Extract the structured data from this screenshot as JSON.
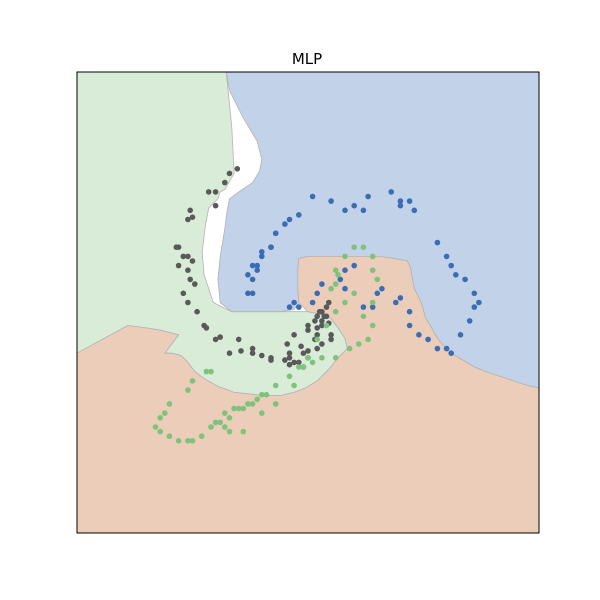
{
  "chart_data": {
    "type": "scatter",
    "title": "MLP",
    "xlabel": "",
    "ylabel": "",
    "xlim": [
      0,
      1
    ],
    "ylim": [
      0,
      1
    ],
    "axes_visible": false,
    "grid": false,
    "legend": "none",
    "colors": {
      "region_green": "#d8ecd8",
      "region_blue": "#c2d2e8",
      "region_orange": "#ebcdb9",
      "boundary": "#b3b3b3"
    },
    "decision_regions": [
      {
        "class": "green",
        "color": "#d8ecd8",
        "polygon": [
          [
            0,
            1
          ],
          [
            0.323,
            1
          ],
          [
            0.335,
            0.88
          ],
          [
            0.34,
            0.78
          ],
          [
            0.32,
            0.745
          ],
          [
            0.31,
            0.74
          ],
          [
            0.305,
            0.725
          ],
          [
            0.285,
            0.705
          ],
          [
            0.278,
            0.667
          ],
          [
            0.271,
            0.61
          ],
          [
            0.275,
            0.56
          ],
          [
            0.295,
            0.5
          ],
          [
            0.335,
            0.48
          ],
          [
            0.37,
            0.48
          ],
          [
            0.405,
            0.48
          ],
          [
            0.44,
            0.48
          ],
          [
            0.475,
            0.48
          ],
          [
            0.5,
            0.48
          ],
          [
            0.525,
            0.475
          ],
          [
            0.55,
            0.465
          ],
          [
            0.565,
            0.445
          ],
          [
            0.58,
            0.422
          ],
          [
            0.585,
            0.4
          ],
          [
            0.565,
            0.38
          ],
          [
            0.545,
            0.355
          ],
          [
            0.52,
            0.33
          ],
          [
            0.495,
            0.315
          ],
          [
            0.47,
            0.305
          ],
          [
            0.44,
            0.298
          ],
          [
            0.405,
            0.298
          ],
          [
            0.37,
            0.302
          ],
          [
            0.34,
            0.305
          ],
          [
            0.305,
            0.318
          ],
          [
            0.275,
            0.335
          ],
          [
            0.255,
            0.35
          ],
          [
            0.24,
            0.37
          ],
          [
            0.225,
            0.385
          ],
          [
            0.205,
            0.39
          ],
          [
            0.19,
            0.39
          ],
          [
            0.22,
            0.43
          ],
          [
            0.2,
            0.435
          ],
          [
            0.18,
            0.44
          ],
          [
            0.15,
            0.445
          ],
          [
            0.11,
            0.45
          ],
          [
            0,
            0.39
          ]
        ]
      },
      {
        "class": "blue",
        "color": "#c2d2e8",
        "polygon": [
          [
            0.323,
            1
          ],
          [
            1,
            1
          ],
          [
            1,
            0.315
          ],
          [
            0.975,
            0.32
          ],
          [
            0.945,
            0.33
          ],
          [
            0.915,
            0.34
          ],
          [
            0.885,
            0.35
          ],
          [
            0.86,
            0.36
          ],
          [
            0.835,
            0.375
          ],
          [
            0.81,
            0.39
          ],
          [
            0.79,
            0.41
          ],
          [
            0.775,
            0.43
          ],
          [
            0.765,
            0.45
          ],
          [
            0.755,
            0.465
          ],
          [
            0.745,
            0.5
          ],
          [
            0.73,
            0.53
          ],
          [
            0.725,
            0.555
          ],
          [
            0.722,
            0.575
          ],
          [
            0.715,
            0.59
          ],
          [
            0.69,
            0.595
          ],
          [
            0.655,
            0.6
          ],
          [
            0.61,
            0.6
          ],
          [
            0.57,
            0.6
          ],
          [
            0.535,
            0.6
          ],
          [
            0.5,
            0.6
          ],
          [
            0.48,
            0.595
          ],
          [
            0.478,
            0.57
          ],
          [
            0.478,
            0.53
          ],
          [
            0.48,
            0.5
          ],
          [
            0.47,
            0.485
          ],
          [
            0.44,
            0.48
          ],
          [
            0.405,
            0.48
          ],
          [
            0.37,
            0.48
          ],
          [
            0.335,
            0.48
          ],
          [
            0.31,
            0.5
          ],
          [
            0.305,
            0.55
          ],
          [
            0.31,
            0.6
          ],
          [
            0.32,
            0.66
          ],
          [
            0.325,
            0.7
          ],
          [
            0.33,
            0.725
          ],
          [
            0.35,
            0.74
          ],
          [
            0.38,
            0.76
          ],
          [
            0.395,
            0.785
          ],
          [
            0.4,
            0.81
          ],
          [
            0.39,
            0.85
          ],
          [
            0.36,
            0.9
          ],
          [
            0.345,
            0.93
          ],
          [
            0.33,
            0.96
          ]
        ]
      },
      {
        "class": "orange",
        "color": "#ebcdb9",
        "polygon": [
          [
            0,
            0
          ],
          [
            1,
            0
          ],
          [
            1,
            0.315
          ],
          [
            0.975,
            0.32
          ],
          [
            0.945,
            0.33
          ],
          [
            0.915,
            0.34
          ],
          [
            0.885,
            0.35
          ],
          [
            0.86,
            0.36
          ],
          [
            0.835,
            0.375
          ],
          [
            0.81,
            0.39
          ],
          [
            0.79,
            0.41
          ],
          [
            0.775,
            0.43
          ],
          [
            0.765,
            0.45
          ],
          [
            0.755,
            0.465
          ],
          [
            0.745,
            0.5
          ],
          [
            0.73,
            0.53
          ],
          [
            0.725,
            0.555
          ],
          [
            0.722,
            0.575
          ],
          [
            0.715,
            0.59
          ],
          [
            0.69,
            0.595
          ],
          [
            0.655,
            0.6
          ],
          [
            0.61,
            0.6
          ],
          [
            0.57,
            0.6
          ],
          [
            0.535,
            0.6
          ],
          [
            0.5,
            0.6
          ],
          [
            0.48,
            0.595
          ],
          [
            0.478,
            0.57
          ],
          [
            0.478,
            0.53
          ],
          [
            0.48,
            0.5
          ],
          [
            0.5,
            0.48
          ],
          [
            0.525,
            0.475
          ],
          [
            0.55,
            0.465
          ],
          [
            0.565,
            0.445
          ],
          [
            0.58,
            0.422
          ],
          [
            0.585,
            0.4
          ],
          [
            0.565,
            0.38
          ],
          [
            0.545,
            0.355
          ],
          [
            0.52,
            0.33
          ],
          [
            0.495,
            0.315
          ],
          [
            0.47,
            0.305
          ],
          [
            0.44,
            0.298
          ],
          [
            0.405,
            0.298
          ],
          [
            0.37,
            0.302
          ],
          [
            0.34,
            0.305
          ],
          [
            0.305,
            0.318
          ],
          [
            0.275,
            0.335
          ],
          [
            0.255,
            0.35
          ],
          [
            0.24,
            0.37
          ],
          [
            0.225,
            0.385
          ],
          [
            0.205,
            0.39
          ],
          [
            0.19,
            0.39
          ],
          [
            0.22,
            0.43
          ],
          [
            0.2,
            0.435
          ],
          [
            0.18,
            0.44
          ],
          [
            0.15,
            0.445
          ],
          [
            0.11,
            0.45
          ],
          [
            0,
            0.39
          ]
        ]
      }
    ],
    "series": [
      {
        "color": "#595959",
        "x": [
          0.347,
          0.32,
          0.33,
          0.3,
          0.285,
          0.3,
          0.245,
          0.24,
          0.25,
          0.22,
          0.215,
          0.23,
          0.24,
          0.22,
          0.24,
          0.25,
          0.245,
          0.255,
          0.23,
          0.24,
          0.26,
          0.275,
          0.3,
          0.33,
          0.355,
          0.38,
          0.4,
          0.42,
          0.45,
          0.47,
          0.48,
          0.5,
          0.52,
          0.53,
          0.55,
          0.545,
          0.54,
          0.53,
          0.525,
          0.52,
          0.515,
          0.5,
          0.5,
          0.47,
          0.455,
          0.485,
          0.46,
          0.42,
          0.49,
          0.5,
          0.515,
          0.52,
          0.53,
          0.535,
          0.545,
          0.54,
          0.53,
          0.55,
          0.52,
          0.46,
          0.49,
          0.46,
          0.38,
          0.35,
          0.31,
          0.28
        ],
        "y": [
          0.79,
          0.76,
          0.78,
          0.74,
          0.74,
          0.71,
          0.7,
          0.68,
          0.685,
          0.62,
          0.62,
          0.6,
          0.57,
          0.58,
          0.6,
          0.59,
          0.55,
          0.54,
          0.52,
          0.5,
          0.48,
          0.45,
          0.42,
          0.39,
          0.395,
          0.39,
          0.385,
          0.38,
          0.375,
          0.37,
          0.37,
          0.38,
          0.4,
          0.41,
          0.43,
          0.455,
          0.47,
          0.48,
          0.48,
          0.47,
          0.46,
          0.45,
          0.44,
          0.43,
          0.41,
          0.405,
          0.38,
          0.375,
          0.36,
          0.395,
          0.42,
          0.445,
          0.46,
          0.47,
          0.5,
          0.49,
          0.45,
          0.42,
          0.43,
          0.365,
          0.39,
          0.39,
          0.4,
          0.42,
          0.425,
          0.445
        ]
      },
      {
        "color": "#3a6db3",
        "x": [
          0.46,
          0.48,
          0.47,
          0.51,
          0.52,
          0.53,
          0.57,
          0.58,
          0.6,
          0.58,
          0.62,
          0.64,
          0.65,
          0.66,
          0.69,
          0.7,
          0.72,
          0.72,
          0.74,
          0.76,
          0.78,
          0.8,
          0.81,
          0.83,
          0.85,
          0.86,
          0.87,
          0.86,
          0.84,
          0.82,
          0.81,
          0.8,
          0.78,
          0.73,
          0.72,
          0.7,
          0.7,
          0.68,
          0.63,
          0.62,
          0.6,
          0.58,
          0.55,
          0.51,
          0.46,
          0.43,
          0.42,
          0.4,
          0.39,
          0.38,
          0.38,
          0.37,
          0.37,
          0.38,
          0.39,
          0.4,
          0.42,
          0.43,
          0.45,
          0.48
        ],
        "y": [
          0.49,
          0.49,
          0.5,
          0.5,
          0.52,
          0.54,
          0.55,
          0.57,
          0.58,
          0.53,
          0.49,
          0.49,
          0.52,
          0.53,
          0.5,
          0.51,
          0.48,
          0.45,
          0.43,
          0.42,
          0.4,
          0.4,
          0.39,
          0.43,
          0.46,
          0.49,
          0.5,
          0.52,
          0.55,
          0.56,
          0.58,
          0.6,
          0.63,
          0.7,
          0.72,
          0.71,
          0.72,
          0.74,
          0.73,
          0.7,
          0.71,
          0.7,
          0.72,
          0.73,
          0.68,
          0.65,
          0.62,
          0.6,
          0.57,
          0.55,
          0.52,
          0.52,
          0.56,
          0.58,
          0.58,
          0.61,
          0.62,
          0.65,
          0.67,
          0.69
        ]
      },
      {
        "color": "#7ec27e",
        "x": [
          0.55,
          0.56,
          0.565,
          0.56,
          0.58,
          0.6,
          0.62,
          0.64,
          0.64,
          0.65,
          0.64,
          0.62,
          0.64,
          0.63,
          0.61,
          0.59,
          0.56,
          0.53,
          0.51,
          0.49,
          0.47,
          0.43,
          0.4,
          0.36,
          0.33,
          0.32,
          0.31,
          0.33,
          0.35,
          0.37,
          0.39,
          0.4,
          0.29,
          0.28,
          0.25,
          0.24,
          0.2,
          0.19,
          0.18,
          0.17,
          0.18,
          0.2,
          0.22,
          0.24,
          0.25,
          0.27,
          0.29,
          0.3,
          0.32,
          0.34,
          0.36,
          0.38,
          0.41,
          0.43,
          0.46,
          0.48,
          0.5,
          0.52,
          0.54,
          0.56,
          0.58,
          0.6
        ],
        "y": [
          0.53,
          0.54,
          0.56,
          0.57,
          0.6,
          0.62,
          0.62,
          0.6,
          0.57,
          0.55,
          0.5,
          0.47,
          0.45,
          0.42,
          0.41,
          0.4,
          0.38,
          0.38,
          0.37,
          0.36,
          0.32,
          0.28,
          0.26,
          0.22,
          0.22,
          0.23,
          0.24,
          0.25,
          0.27,
          0.28,
          0.29,
          0.3,
          0.35,
          0.35,
          0.33,
          0.31,
          0.28,
          0.26,
          0.25,
          0.23,
          0.22,
          0.21,
          0.2,
          0.2,
          0.2,
          0.21,
          0.23,
          0.24,
          0.26,
          0.27,
          0.27,
          0.28,
          0.3,
          0.32,
          0.34,
          0.36,
          0.38,
          0.42,
          0.45,
          0.48,
          0.5,
          0.52
        ]
      }
    ]
  }
}
